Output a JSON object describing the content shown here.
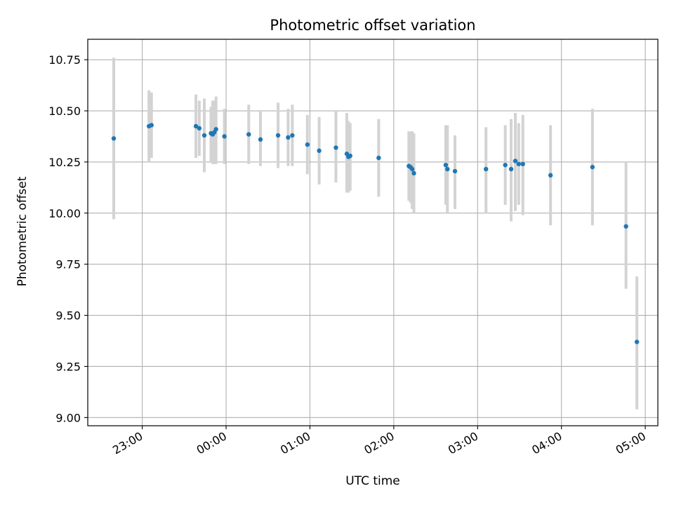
{
  "chart_data": {
    "type": "scatter",
    "title": "Photometric offset variation",
    "xlabel": "UTC time",
    "ylabel": "Photometric offset",
    "x_unit": "hours relative to 00:00 UTC (negative = before midnight)",
    "xlim": [
      -1.65,
      5.15
    ],
    "ylim": [
      8.96,
      10.85
    ],
    "grid": true,
    "x_ticks": [
      {
        "value": -1,
        "label": "23:00"
      },
      {
        "value": 0,
        "label": "00:00"
      },
      {
        "value": 1,
        "label": "01:00"
      },
      {
        "value": 2,
        "label": "02:00"
      },
      {
        "value": 3,
        "label": "03:00"
      },
      {
        "value": 4,
        "label": "04:00"
      },
      {
        "value": 5,
        "label": "05:00"
      }
    ],
    "y_ticks": [
      {
        "value": 9.0,
        "label": "9.00"
      },
      {
        "value": 9.25,
        "label": "9.25"
      },
      {
        "value": 9.5,
        "label": "9.50"
      },
      {
        "value": 9.75,
        "label": "9.75"
      },
      {
        "value": 10.0,
        "label": "10.00"
      },
      {
        "value": 10.25,
        "label": "10.25"
      },
      {
        "value": 10.5,
        "label": "10.50"
      },
      {
        "value": 10.75,
        "label": "10.75"
      }
    ],
    "colors": {
      "point": "#1f77b4",
      "errorbar": "#d3d3d3",
      "grid": "#b0b0b0",
      "axis": "#000000"
    },
    "points": [
      {
        "x": -1.34,
        "y": 10.365,
        "lo": 9.97,
        "hi": 10.76
      },
      {
        "x": -0.92,
        "y": 10.425,
        "lo": 10.25,
        "hi": 10.6
      },
      {
        "x": -0.89,
        "y": 10.43,
        "lo": 10.27,
        "hi": 10.59
      },
      {
        "x": -0.36,
        "y": 10.425,
        "lo": 10.27,
        "hi": 10.58
      },
      {
        "x": -0.32,
        "y": 10.415,
        "lo": 10.28,
        "hi": 10.55
      },
      {
        "x": -0.26,
        "y": 10.38,
        "lo": 10.2,
        "hi": 10.56
      },
      {
        "x": -0.18,
        "y": 10.39,
        "lo": 10.25,
        "hi": 10.52
      },
      {
        "x": -0.16,
        "y": 10.385,
        "lo": 10.24,
        "hi": 10.55
      },
      {
        "x": -0.14,
        "y": 10.395,
        "lo": 10.24,
        "hi": 10.55
      },
      {
        "x": -0.12,
        "y": 10.41,
        "lo": 10.24,
        "hi": 10.57
      },
      {
        "x": -0.02,
        "y": 10.375,
        "lo": 10.24,
        "hi": 10.51
      },
      {
        "x": 0.27,
        "y": 10.385,
        "lo": 10.24,
        "hi": 10.53
      },
      {
        "x": 0.41,
        "y": 10.36,
        "lo": 10.23,
        "hi": 10.5
      },
      {
        "x": 0.62,
        "y": 10.38,
        "lo": 10.22,
        "hi": 10.54
      },
      {
        "x": 0.74,
        "y": 10.37,
        "lo": 10.23,
        "hi": 10.51
      },
      {
        "x": 0.79,
        "y": 10.38,
        "lo": 10.23,
        "hi": 10.53
      },
      {
        "x": 0.97,
        "y": 10.335,
        "lo": 10.19,
        "hi": 10.48
      },
      {
        "x": 1.11,
        "y": 10.305,
        "lo": 10.14,
        "hi": 10.47
      },
      {
        "x": 1.31,
        "y": 10.32,
        "lo": 10.15,
        "hi": 10.5
      },
      {
        "x": 1.44,
        "y": 10.29,
        "lo": 10.1,
        "hi": 10.49
      },
      {
        "x": 1.46,
        "y": 10.275,
        "lo": 10.1,
        "hi": 10.45
      },
      {
        "x": 1.48,
        "y": 10.28,
        "lo": 10.11,
        "hi": 10.44
      },
      {
        "x": 1.82,
        "y": 10.27,
        "lo": 10.08,
        "hi": 10.46
      },
      {
        "x": 2.18,
        "y": 10.23,
        "lo": 10.06,
        "hi": 10.4
      },
      {
        "x": 2.2,
        "y": 10.225,
        "lo": 10.05,
        "hi": 10.4
      },
      {
        "x": 2.22,
        "y": 10.215,
        "lo": 10.02,
        "hi": 10.4
      },
      {
        "x": 2.24,
        "y": 10.195,
        "lo": 10.0,
        "hi": 10.39
      },
      {
        "x": 2.62,
        "y": 10.235,
        "lo": 10.04,
        "hi": 10.43
      },
      {
        "x": 2.64,
        "y": 10.215,
        "lo": 10.0,
        "hi": 10.43
      },
      {
        "x": 2.73,
        "y": 10.205,
        "lo": 10.02,
        "hi": 10.38
      },
      {
        "x": 3.1,
        "y": 10.215,
        "lo": 10.0,
        "hi": 10.42
      },
      {
        "x": 3.33,
        "y": 10.235,
        "lo": 10.04,
        "hi": 10.43
      },
      {
        "x": 3.4,
        "y": 10.215,
        "lo": 9.96,
        "hi": 10.46
      },
      {
        "x": 3.45,
        "y": 10.255,
        "lo": 10.01,
        "hi": 10.49
      },
      {
        "x": 3.49,
        "y": 10.24,
        "lo": 10.04,
        "hi": 10.44
      },
      {
        "x": 3.54,
        "y": 10.24,
        "lo": 9.99,
        "hi": 10.48
      },
      {
        "x": 3.87,
        "y": 10.185,
        "lo": 9.94,
        "hi": 10.43
      },
      {
        "x": 4.37,
        "y": 10.225,
        "lo": 9.94,
        "hi": 10.51
      },
      {
        "x": 4.77,
        "y": 9.935,
        "lo": 9.63,
        "hi": 10.25
      },
      {
        "x": 4.9,
        "y": 9.37,
        "lo": 9.04,
        "hi": 9.69
      }
    ]
  }
}
